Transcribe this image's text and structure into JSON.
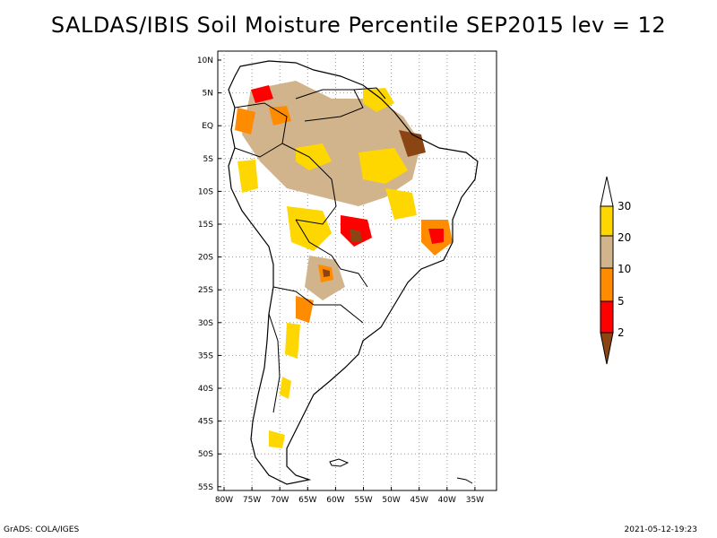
{
  "title": "SALDAS/IBIS Soil Moisture Percentile SEP2015 lev = 12",
  "lat_labels": [
    "10N",
    "5N",
    "EQ",
    "5S",
    "10S",
    "15S",
    "20S",
    "25S",
    "30S",
    "35S",
    "40S",
    "45S",
    "50S",
    "55S"
  ],
  "lon_labels": [
    "80W",
    "75W",
    "70W",
    "65W",
    "60W",
    "55W",
    "50W",
    "45W",
    "40W",
    "35W"
  ],
  "legend": {
    "labels": [
      "30",
      "20",
      "10",
      "5",
      "2"
    ],
    "colors": {
      "above_30": "#ffffff",
      "20_30": "#ffd700",
      "10_20": "#d2b48c",
      "5_10": "#ff8c00",
      "2_5": "#ff0000",
      "below_2": "#8b4513"
    }
  },
  "footer": {
    "left": "GrADS: COLA/IGES",
    "right": "2021-05-12-19:23"
  }
}
